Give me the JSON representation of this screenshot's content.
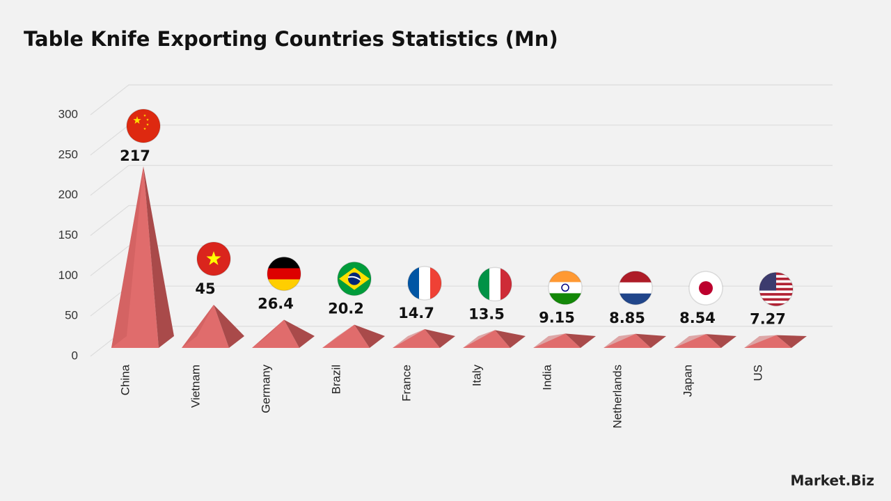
{
  "chart_data": {
    "type": "pyramid",
    "title": "Table Knife Exporting Countries Statistics (Mn)",
    "categories": [
      "China",
      "Vietnam",
      "Germany",
      "Brazil",
      "France",
      "Italy",
      "India",
      "Netherlands",
      "Japan",
      "US"
    ],
    "values": [
      217,
      45,
      26.4,
      20.2,
      14.7,
      13.5,
      9.15,
      8.85,
      8.54,
      7.27
    ],
    "color": "#e06c6c",
    "ylim": [
      0,
      300
    ],
    "yticks": [
      0,
      50,
      100,
      150,
      200,
      250,
      300
    ],
    "grid": true
  },
  "brand": "Market.Biz"
}
